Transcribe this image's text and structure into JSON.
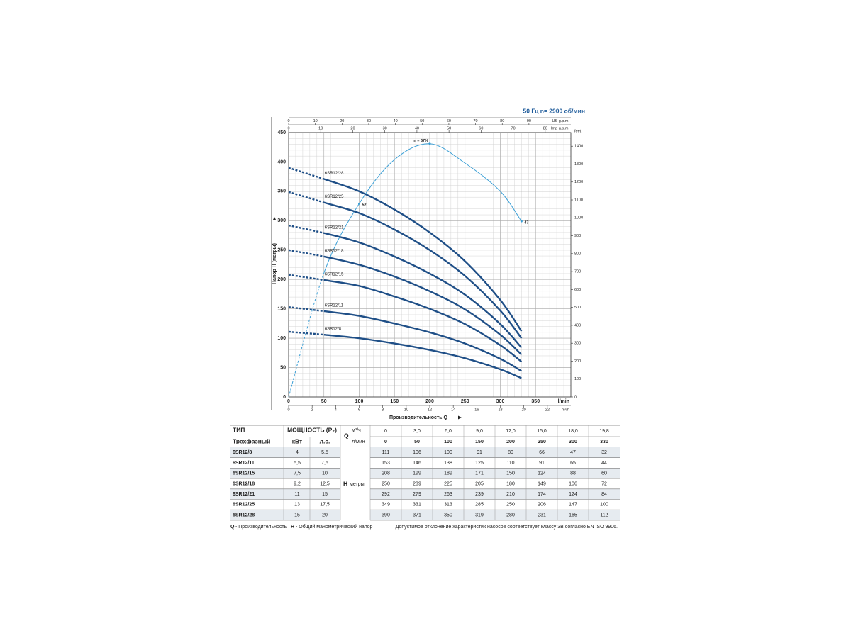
{
  "chart_data": {
    "type": "line",
    "header": "50 Гц    n= 2900 об/мин",
    "y_label": "Напор H (метры)",
    "x_label": "Производительность Q",
    "x_unit": "l/min",
    "y2_unit": "feet",
    "top_unit": "US g.p.m.",
    "top2_unit": "Imp g.p.m.",
    "bottom2_unit": "m³/h",
    "x": [
      0,
      50,
      100,
      150,
      200,
      250,
      300,
      330
    ],
    "xlim": [
      0,
      400
    ],
    "xticks": [
      0,
      50,
      100,
      150,
      200,
      250,
      300,
      350
    ],
    "ylim": [
      0,
      450
    ],
    "yticks": [
      0,
      50,
      100,
      150,
      200,
      250,
      300,
      350,
      400,
      450
    ],
    "y2lim": [
      0,
      1476
    ],
    "y2ticks": [
      0,
      100,
      200,
      300,
      400,
      500,
      600,
      700,
      800,
      900,
      1000,
      1100,
      1200,
      1300,
      1400
    ],
    "top_axis": {
      "lim": [
        0,
        105.7
      ],
      "ticks": [
        0,
        10,
        20,
        30,
        40,
        50,
        60,
        70,
        80,
        90
      ]
    },
    "top2_axis": {
      "lim": [
        0,
        88
      ],
      "ticks": [
        0,
        10,
        20,
        30,
        40,
        50,
        60,
        70,
        80
      ]
    },
    "bottom2_axis": {
      "lim": [
        0,
        24
      ],
      "ticks": [
        0,
        2,
        4,
        6,
        8,
        10,
        12,
        14,
        16,
        18,
        20,
        22
      ]
    },
    "grid": true,
    "series": [
      {
        "name": "6SR12/8",
        "color": "#1f4f87",
        "values": [
          111,
          106,
          100,
          91,
          80,
          66,
          47,
          32
        ]
      },
      {
        "name": "6SR12/11",
        "color": "#1f4f87",
        "values": [
          153,
          146,
          138,
          125,
          110,
          91,
          65,
          44
        ]
      },
      {
        "name": "6SR12/15",
        "color": "#1f4f87",
        "values": [
          208,
          199,
          189,
          171,
          150,
          124,
          88,
          60
        ]
      },
      {
        "name": "6SR12/18",
        "color": "#1f4f87",
        "values": [
          250,
          239,
          225,
          205,
          180,
          149,
          106,
          72
        ]
      },
      {
        "name": "6SR12/21",
        "color": "#1f4f87",
        "values": [
          292,
          279,
          263,
          239,
          210,
          174,
          124,
          84
        ]
      },
      {
        "name": "6SR12/25",
        "color": "#1f4f87",
        "values": [
          349,
          331,
          313,
          285,
          250,
          206,
          147,
          100
        ]
      },
      {
        "name": "6SR12/28",
        "color": "#1f4f87",
        "values": [
          390,
          371,
          350,
          319,
          280,
          231,
          165,
          112
        ]
      }
    ],
    "efficiency": {
      "color": "#3a9fd6",
      "head": [
        0,
        211,
        329,
        404,
        431,
        398,
        350,
        299
      ],
      "labels": [
        null,
        null,
        "52",
        null,
        "η = 67%",
        null,
        null,
        "47"
      ]
    }
  },
  "table": {
    "type_header": "ТИП",
    "power_header": "МОЩНОСТЬ (P₂)",
    "phase": "Трехфазный",
    "kw_header": "кВт",
    "hp_header": "л.с.",
    "q_symbol": "Q",
    "m3h_unit": "м³/ч",
    "lmin_unit": "л/мин",
    "h_symbol": "H",
    "h_unit": "метры",
    "q_m3h": [
      "0",
      "3,0",
      "6,0",
      "9,0",
      "12,0",
      "15,0",
      "18,0",
      "19,8"
    ],
    "rows": [
      {
        "kw": "4",
        "hp": "5,5"
      },
      {
        "kw": "5,5",
        "hp": "7,5"
      },
      {
        "kw": "7,5",
        "hp": "10"
      },
      {
        "kw": "9,2",
        "hp": "12,5"
      },
      {
        "kw": "11",
        "hp": "15"
      },
      {
        "kw": "13",
        "hp": "17,5"
      },
      {
        "kw": "15",
        "hp": "20"
      }
    ]
  },
  "notes": {
    "q": "Q",
    "q_text": "- Производительность",
    "h": "H",
    "h_text": "- Общий манометрический напор",
    "tolerance": "Допустимое отклонение характеристик насосов соответствует классу 3B согласно EN ISO 9906."
  }
}
